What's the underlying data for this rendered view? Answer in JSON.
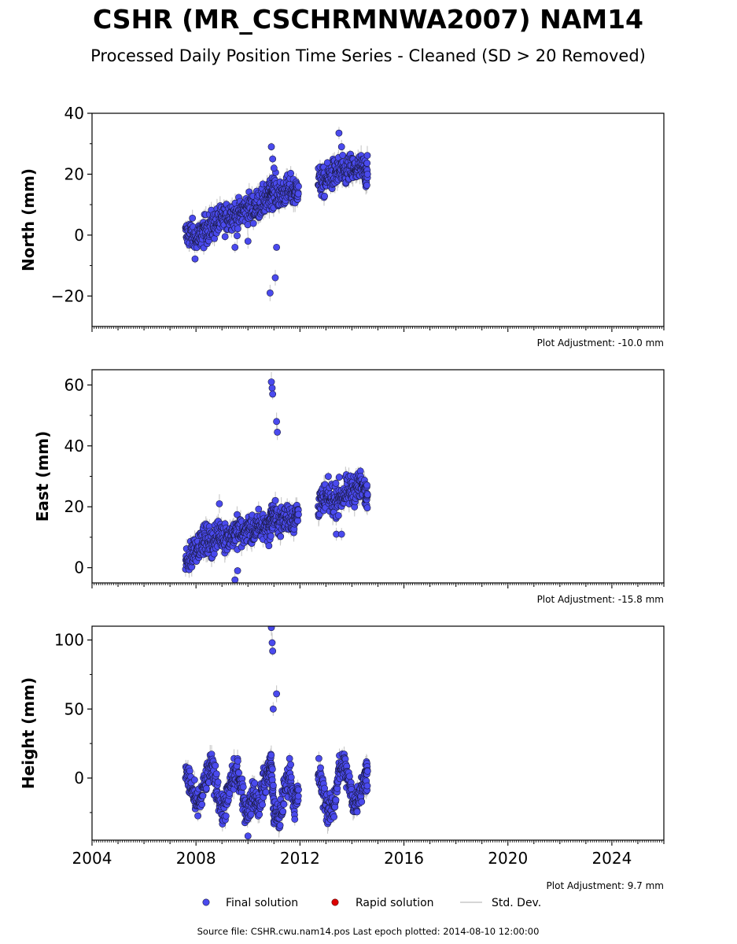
{
  "title": "CSHR (MR_CSCHRMNWA2007) NAM14",
  "subtitle": "Processed Daily Position Time Series - Cleaned (SD > 20 Removed)",
  "footer": "Source file: CSHR.cwu.nam14.pos  Last epoch plotted: 2014-08-10 12:00:00",
  "colors": {
    "final": "#4a4aee",
    "rapid": "#dd0000",
    "std": "#c8c8c8",
    "edge": "#1a1a40"
  },
  "legend": [
    {
      "name": "Final solution",
      "icon": "blue-dot"
    },
    {
      "name": "Rapid solution",
      "icon": "red-dot"
    },
    {
      "name": "Std. Dev.",
      "icon": "grey-line"
    }
  ],
  "chart_data": [
    {
      "type": "scatter",
      "ylabel": "North (mm)",
      "adjustment": "Plot Adjustment: -10.0 mm",
      "xlim": [
        2004,
        2026
      ],
      "ylim": [
        -30,
        40
      ],
      "yticks": [
        -20,
        0,
        20,
        40
      ],
      "yticklabels": [
        "−20",
        "0",
        "20",
        "40"
      ],
      "x": [
        2007.6,
        2007.8,
        2008.0,
        2008.2,
        2008.4,
        2008.6,
        2008.8,
        2009.0,
        2009.2,
        2009.4,
        2009.6,
        2009.8,
        2010.0,
        2010.2,
        2010.4,
        2010.6,
        2010.8,
        2010.9,
        2011.0,
        2011.2,
        2011.4,
        2011.6,
        2011.8,
        2011.95,
        2012.7,
        2012.9,
        2013.1,
        2013.3,
        2013.5,
        2013.7,
        2013.9,
        2014.1,
        2014.3,
        2014.5,
        2014.6
      ],
      "y": [
        0,
        1,
        -2,
        0,
        2,
        3,
        4,
        5,
        6,
        7,
        6,
        8,
        9,
        9,
        10,
        11,
        12,
        14,
        15,
        13,
        14,
        15,
        14,
        16,
        18,
        17,
        19,
        20,
        21,
        20,
        22,
        21,
        22,
        21,
        20
      ],
      "outliers": {
        "x": [
          2010.85,
          2010.9,
          2010.95,
          2011.0,
          2011.05,
          2011.1,
          2009.5,
          2010.0,
          2013.5,
          2013.6
        ],
        "y": [
          -19,
          29,
          25,
          22,
          -14,
          -4,
          -4,
          -2,
          33.5,
          29
        ]
      }
    },
    {
      "type": "scatter",
      "ylabel": "East (mm)",
      "adjustment": "Plot Adjustment: -15.8 mm",
      "xlim": [
        2004,
        2026
      ],
      "ylim": [
        -5,
        65
      ],
      "yticks": [
        0,
        20,
        40,
        60
      ],
      "yticklabels": [
        "0",
        "20",
        "40",
        "60"
      ],
      "x": [
        2007.6,
        2007.8,
        2008.0,
        2008.2,
        2008.4,
        2008.6,
        2008.8,
        2009.0,
        2009.2,
        2009.4,
        2009.6,
        2009.8,
        2010.0,
        2010.2,
        2010.4,
        2010.6,
        2010.8,
        2010.9,
        2011.0,
        2011.2,
        2011.4,
        2011.6,
        2011.8,
        2011.95,
        2012.7,
        2012.9,
        2013.1,
        2013.3,
        2013.5,
        2013.7,
        2013.9,
        2014.1,
        2014.3,
        2014.5,
        2014.6
      ],
      "y": [
        1,
        4,
        7,
        8,
        9,
        8,
        10,
        11,
        10,
        11,
        12,
        11,
        13,
        12,
        13,
        14,
        13,
        16,
        17,
        15,
        16,
        17,
        16,
        18,
        21,
        22,
        23,
        22,
        23,
        24,
        25,
        26,
        27,
        25,
        24
      ],
      "outliers": {
        "x": [
          2010.9,
          2010.93,
          2010.95,
          2011.1,
          2011.13,
          2009.5,
          2009.6,
          2008.9,
          2013.4,
          2013.6
        ],
        "y": [
          61,
          59,
          57,
          48,
          44.5,
          -4,
          -1,
          21,
          11,
          11
        ]
      }
    },
    {
      "type": "scatter",
      "ylabel": "Height (mm)",
      "adjustment": "Plot Adjustment: 9.7 mm",
      "xlim": [
        2004,
        2026
      ],
      "ylim": [
        -45,
        110
      ],
      "yticks": [
        0,
        50,
        100
      ],
      "yticklabels": [
        "0",
        "50",
        "100"
      ],
      "x": [
        2007.6,
        2007.8,
        2008.0,
        2008.2,
        2008.4,
        2008.6,
        2008.8,
        2009.0,
        2009.2,
        2009.4,
        2009.6,
        2009.8,
        2010.0,
        2010.2,
        2010.4,
        2010.6,
        2010.8,
        2010.9,
        2011.0,
        2011.2,
        2011.4,
        2011.6,
        2011.8,
        2011.95,
        2012.7,
        2012.9,
        2013.1,
        2013.3,
        2013.5,
        2013.7,
        2013.9,
        2014.1,
        2014.3,
        2014.5,
        2014.6
      ],
      "y": [
        5,
        -5,
        -20,
        -15,
        0,
        8,
        -5,
        -25,
        -15,
        0,
        5,
        -15,
        -25,
        -10,
        -20,
        -5,
        5,
        10,
        -25,
        -30,
        -10,
        5,
        -20,
        -10,
        5,
        -10,
        -25,
        -20,
        5,
        10,
        -5,
        -20,
        -10,
        0,
        5
      ],
      "outliers": {
        "x": [
          2010.9,
          2010.93,
          2010.95,
          2010.97,
          2011.1,
          2010.0
        ],
        "y": [
          109,
          98,
          92,
          50,
          61,
          -42
        ]
      }
    }
  ]
}
